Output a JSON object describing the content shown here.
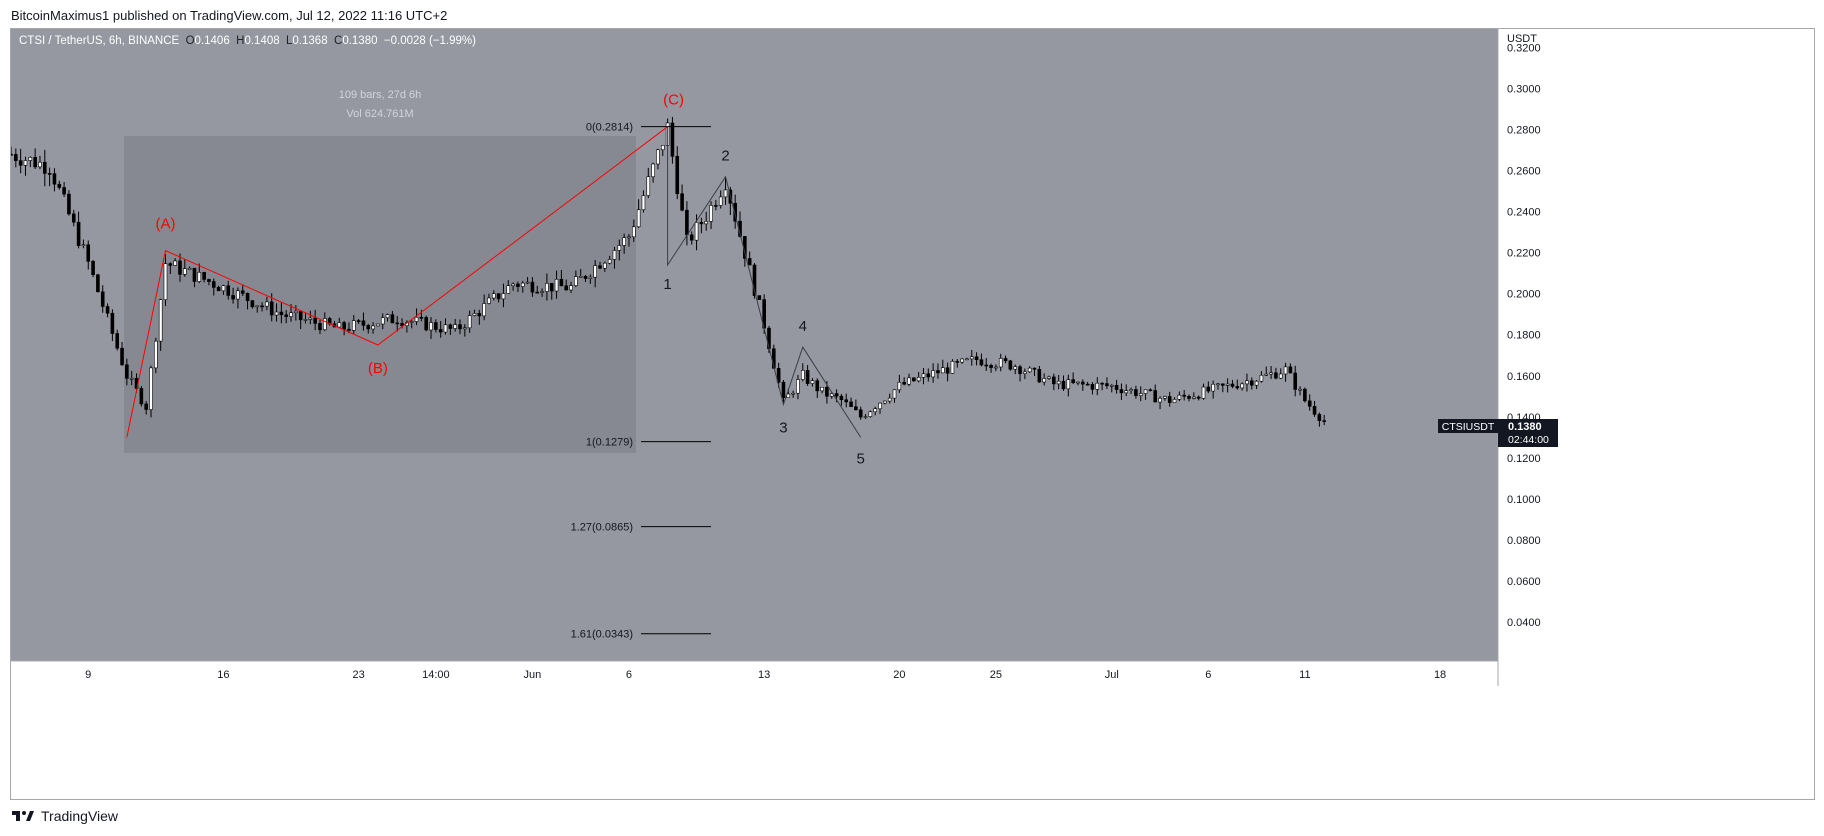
{
  "header": {
    "publisher": "BitcoinMaximus1 published on TradingView.com, Jul 12, 2022 11:16 UTC+2"
  },
  "footer": {
    "brand": "TradingView"
  },
  "legend": {
    "symbol": "CTSI / TetherUS, 6h, BINANCE",
    "o_label": "O",
    "o_value": "0.1406",
    "h_label": "H",
    "h_value": "0.1408",
    "l_label": "L",
    "l_value": "0.1368",
    "c_label": "C",
    "c_value": "0.1380",
    "change": "−0.0028 (−1.99%)"
  },
  "price_axis": {
    "currency": "USDT",
    "ticks": [
      "0.3200",
      "0.3000",
      "0.2800",
      "0.2600",
      "0.2400",
      "0.2200",
      "0.2000",
      "0.1800",
      "0.1600",
      "0.1400",
      "0.1200",
      "0.1000",
      "0.0800",
      "0.0600",
      "0.0400"
    ],
    "last_symbol": "CTSIUSDT",
    "last_price": "0.1380",
    "countdown": "02:44:00"
  },
  "time_axis": {
    "labels": [
      "9",
      "16",
      "23",
      "14:00",
      "Jun",
      "6",
      "13",
      "20",
      "25",
      "Jul",
      "6",
      "11",
      "18"
    ]
  },
  "measure_box": {
    "bars_text": "109 bars, 27d 6h",
    "vol_text": "Vol 624.761M"
  },
  "fib_levels": [
    {
      "label": "0(0.2814)",
      "price": 0.2814
    },
    {
      "label": "1(0.1279)",
      "price": 0.1279
    },
    {
      "label": "1.27(0.0865)",
      "price": 0.0865
    },
    {
      "label": "1.61(0.0343)",
      "price": 0.0343
    }
  ],
  "wave_labels": {
    "corrective": [
      "(A)",
      "(B)",
      "(C)"
    ],
    "impulse": [
      "1",
      "2",
      "3",
      "4",
      "5"
    ]
  },
  "colors": {
    "background": "#9598a1",
    "box": "#868991",
    "corrective": "#ff0000",
    "candle": "#000000",
    "axis_bg": "#ffffff"
  },
  "chart_data": {
    "type": "candlestick",
    "title": "CTSI / TetherUS, 6h, BINANCE",
    "ylabel": "USDT",
    "ylim": [
      0.021,
      0.329
    ],
    "series": [
      {
        "name": "CTSI / TetherUS",
        "dates": [
          "2022-05-05",
          "2022-05-07",
          "2022-05-09",
          "2022-05-11",
          "2022-05-12",
          "2022-05-13",
          "2022-05-16",
          "2022-05-19",
          "2022-05-22",
          "2022-05-25",
          "2022-05-28",
          "2022-05-31",
          "2022-06-03",
          "2022-06-06",
          "2022-06-08",
          "2022-06-09",
          "2022-06-10",
          "2022-06-11",
          "2022-06-12",
          "2022-06-13",
          "2022-06-14",
          "2022-06-15",
          "2022-06-16",
          "2022-06-17",
          "2022-06-18",
          "2022-06-20",
          "2022-06-22",
          "2022-06-24",
          "2022-06-26",
          "2022-06-28",
          "2022-07-01",
          "2022-07-04",
          "2022-07-07",
          "2022-07-09",
          "2022-07-10",
          "2022-07-11",
          "2022-07-12"
        ],
        "close": [
          0.268,
          0.262,
          0.215,
          0.16,
          0.145,
          0.215,
          0.203,
          0.19,
          0.183,
          0.188,
          0.182,
          0.205,
          0.203,
          0.228,
          0.281,
          0.225,
          0.238,
          0.255,
          0.22,
          0.185,
          0.147,
          0.16,
          0.152,
          0.148,
          0.14,
          0.155,
          0.162,
          0.168,
          0.165,
          0.156,
          0.155,
          0.148,
          0.155,
          0.16,
          0.163,
          0.148,
          0.138
        ]
      }
    ],
    "corrective_wave": [
      {
        "label": "(A)",
        "date": "2022-05-13",
        "price": 0.221
      },
      {
        "label": "(B)",
        "date": "2022-05-24",
        "price": 0.175
      },
      {
        "label": "(C)",
        "date": "2022-06-08",
        "price": 0.2814
      }
    ],
    "impulse_wave": [
      {
        "label": "1",
        "date": "2022-06-08",
        "price": 0.214
      },
      {
        "label": "2",
        "date": "2022-06-11",
        "price": 0.257
      },
      {
        "label": "3",
        "date": "2022-06-14",
        "price": 0.146
      },
      {
        "label": "4",
        "date": "2022-06-15",
        "price": 0.174
      },
      {
        "label": "5",
        "date": "2022-06-18",
        "price": 0.13
      }
    ],
    "annotations": [
      "109 bars, 27d 6h",
      "Vol 624.761M"
    ]
  }
}
